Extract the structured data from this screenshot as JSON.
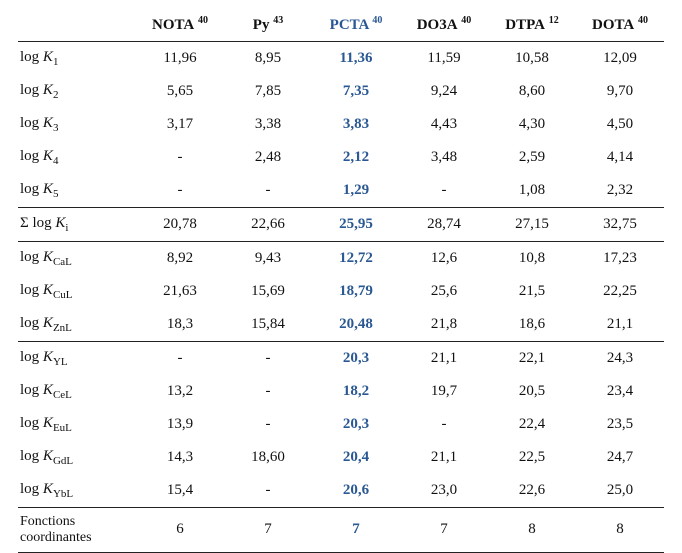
{
  "colors": {
    "text": "#111111",
    "accent": "#2a5892",
    "rule": "#222222",
    "background": "#ffffff"
  },
  "columns": [
    {
      "label": "NOTA",
      "ref": "40"
    },
    {
      "label": "Py",
      "ref": "43"
    },
    {
      "label": "PCTA",
      "ref": "40",
      "highlight": true
    },
    {
      "label": "DO3A",
      "ref": "40"
    },
    {
      "label": "DTPA",
      "ref": "12"
    },
    {
      "label": "DOTA",
      "ref": "40"
    }
  ],
  "sections": [
    {
      "rows": [
        {
          "pre": "log ",
          "k": "K",
          "sub": "1",
          "values": [
            "11,96",
            "8,95",
            "11,36",
            "11,59",
            "10,58",
            "12,09"
          ]
        },
        {
          "pre": "log ",
          "k": "K",
          "sub": "2",
          "values": [
            "5,65",
            "7,85",
            "7,35",
            "9,24",
            "8,60",
            "9,70"
          ]
        },
        {
          "pre": "log ",
          "k": "K",
          "sub": "3",
          "values": [
            "3,17",
            "3,38",
            "3,83",
            "4,43",
            "4,30",
            "4,50"
          ]
        },
        {
          "pre": "log ",
          "k": "K",
          "sub": "4",
          "values": [
            "-",
            "2,48",
            "2,12",
            "3,48",
            "2,59",
            "4,14"
          ]
        },
        {
          "pre": "log ",
          "k": "K",
          "sub": "5",
          "values": [
            "-",
            "-",
            "1,29",
            "-",
            "1,08",
            "2,32"
          ]
        }
      ]
    },
    {
      "rows": [
        {
          "pre": "Σ log ",
          "k": "K",
          "sub": "i",
          "values": [
            "20,78",
            "22,66",
            "25,95",
            "28,74",
            "27,15",
            "32,75"
          ]
        }
      ]
    },
    {
      "rows": [
        {
          "pre": "log ",
          "k": "K",
          "sub": "CaL",
          "values": [
            "8,92",
            "9,43",
            "12,72",
            "12,6",
            "10,8",
            "17,23"
          ]
        },
        {
          "pre": "log ",
          "k": "K",
          "sub": "CuL",
          "values": [
            "21,63",
            "15,69",
            "18,79",
            "25,6",
            "21,5",
            "22,25"
          ]
        },
        {
          "pre": "log ",
          "k": "K",
          "sub": "ZnL",
          "values": [
            "18,3",
            "15,84",
            "20,48",
            "21,8",
            "18,6",
            "21,1"
          ]
        }
      ]
    },
    {
      "rows": [
        {
          "pre": "log ",
          "k": "K",
          "sub": "YL",
          "values": [
            "-",
            "-",
            "20,3",
            "21,1",
            "22,1",
            "24,3"
          ]
        },
        {
          "pre": "log ",
          "k": "K",
          "sub": "CeL",
          "values": [
            "13,2",
            "-",
            "18,2",
            "19,7",
            "20,5",
            "23,4"
          ]
        },
        {
          "pre": "log ",
          "k": "K",
          "sub": "EuL",
          "values": [
            "13,9",
            "-",
            "20,3",
            "-",
            "22,4",
            "23,5"
          ]
        },
        {
          "pre": "log ",
          "k": "K",
          "sub": "GdL",
          "values": [
            "14,3",
            "18,60",
            "20,4",
            "21,1",
            "22,5",
            "24,7"
          ]
        },
        {
          "pre": "log ",
          "k": "K",
          "sub": "YbL",
          "values": [
            "15,4",
            "-",
            "20,6",
            "23,0",
            "22,6",
            "25,0"
          ]
        }
      ]
    },
    {
      "rows": [
        {
          "plain": "Fonctions\ncoordinantes",
          "values": [
            "6",
            "7",
            "7",
            "7",
            "8",
            "8"
          ]
        }
      ]
    }
  ]
}
